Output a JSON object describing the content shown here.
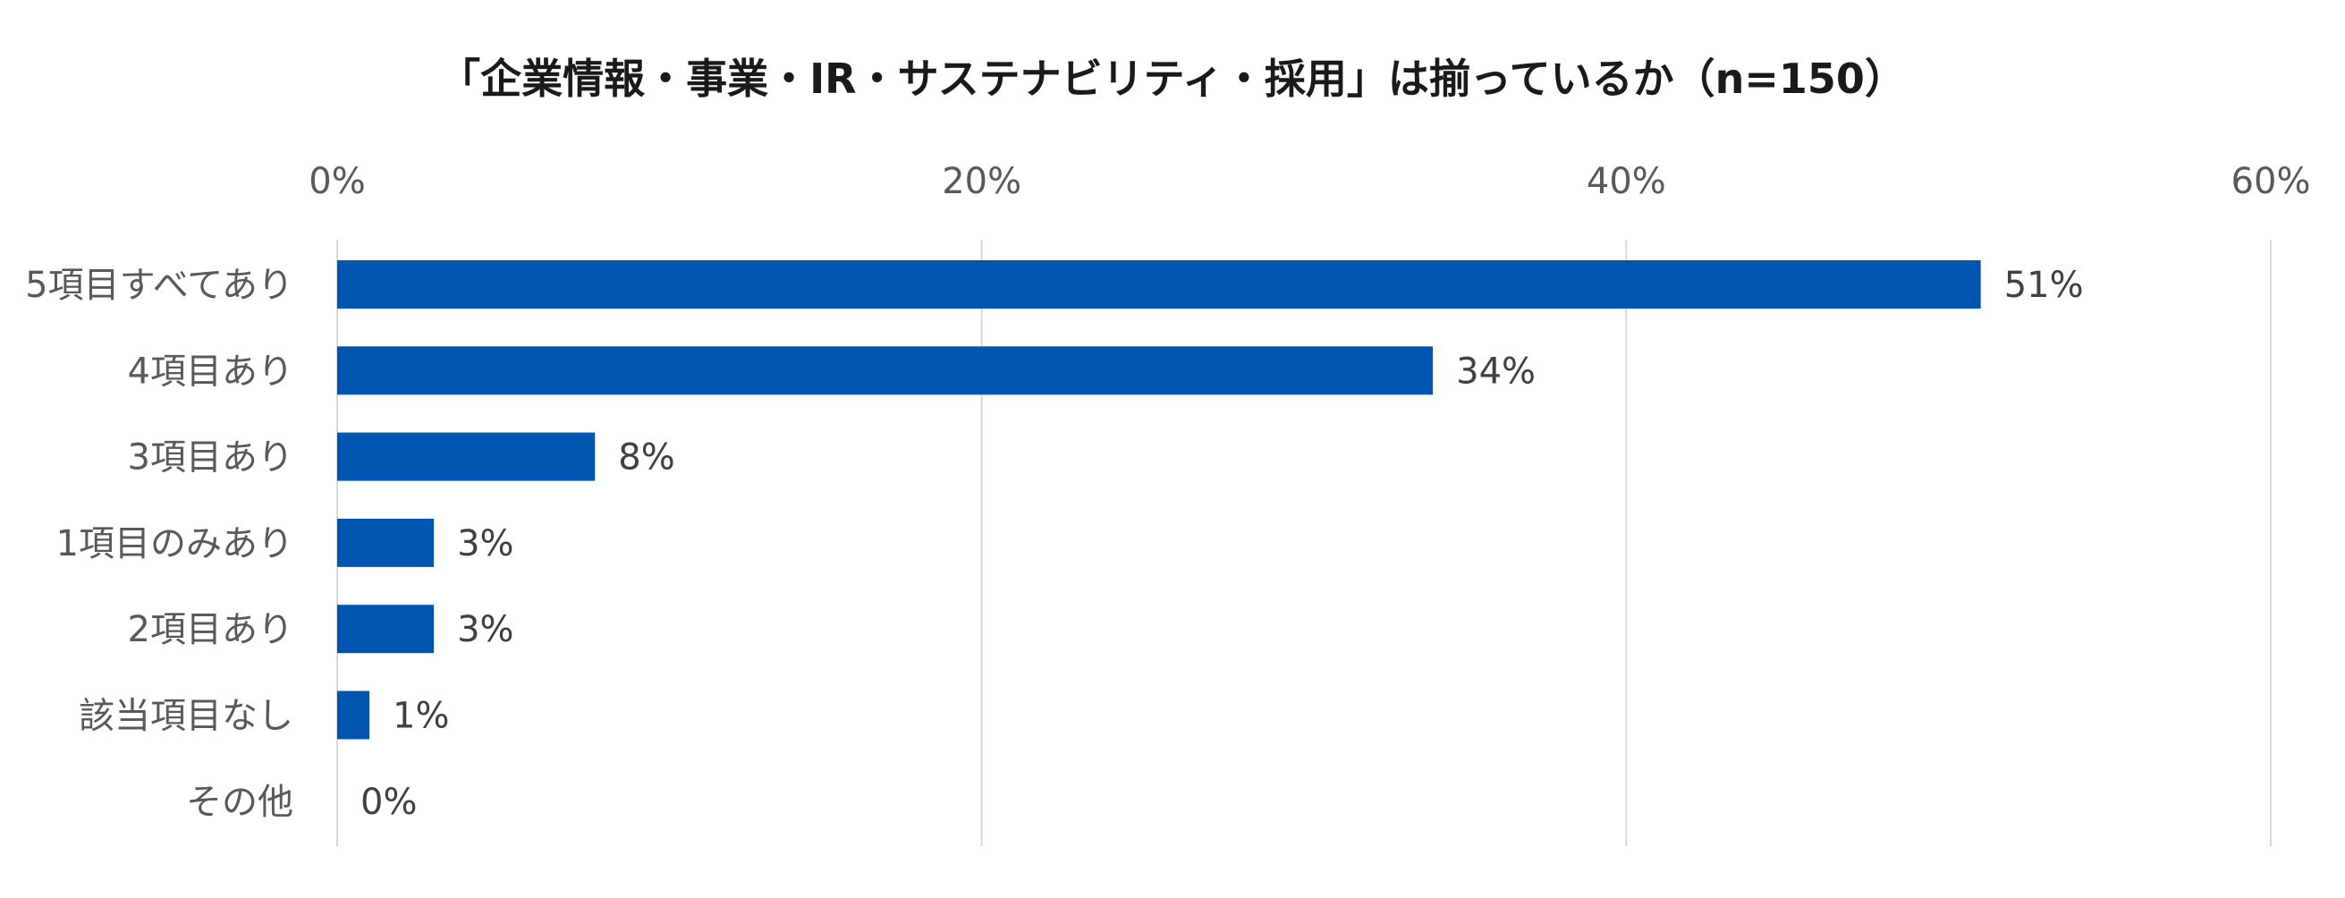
{
  "chart_data": {
    "type": "bar",
    "orientation": "horizontal",
    "title": "「企業情報・事業・IR・サステナビリティ・採用」は揃っているか（n=150）",
    "categories": [
      "5項目すべてあり",
      "4項目あり",
      "3項目あり",
      "1項目のみあり",
      "2項目あり",
      "該当項目なし",
      "その他"
    ],
    "values": [
      51,
      34,
      8,
      3,
      3,
      1,
      0
    ],
    "data_labels": [
      "51%",
      "34%",
      "8%",
      "3%",
      "3%",
      "1%",
      "0%"
    ],
    "xlim": [
      0,
      60
    ],
    "x_ticks": [
      0,
      20,
      40,
      60
    ],
    "x_tick_labels": [
      "0%",
      "20%",
      "40%",
      "60%"
    ],
    "x_axis_position": "top",
    "grid": true,
    "legend": "none",
    "xlabel": "",
    "ylabel": "",
    "colors": {
      "bar": "#0055b0",
      "grid": "#d9d9d9",
      "tick_text": "#595959",
      "label_text": "#404040",
      "title_text": "#1a1a1a"
    }
  }
}
